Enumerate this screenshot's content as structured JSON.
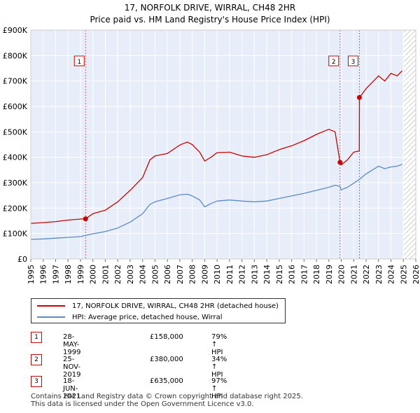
{
  "header": {
    "title": "17, NORFOLK DRIVE, WIRRAL, CH48 2HR",
    "subtitle": "Price paid vs. HM Land Registry's House Price Index (HPI)"
  },
  "colors": {
    "property_line": "#cc0000",
    "hpi_line": "#5b8ac8",
    "background": "#e8eef9",
    "hatch": "#b8b8b8",
    "sale_vline": "#e06060"
  },
  "chart_data": {
    "type": "line",
    "title": "17, NORFOLK DRIVE, WIRRAL, CH48 2HR",
    "subtitle": "Price paid vs. HM Land Registry's House Price Index (HPI)",
    "xlim": [
      1995,
      2026
    ],
    "ylim": [
      0,
      900000
    ],
    "x_ticks": [
      1995,
      1996,
      1997,
      1998,
      1999,
      2000,
      2001,
      2002,
      2003,
      2004,
      2005,
      2006,
      2007,
      2008,
      2009,
      2010,
      2011,
      2012,
      2013,
      2014,
      2015,
      2016,
      2017,
      2018,
      2019,
      2020,
      2021,
      2022,
      2023,
      2024,
      2025,
      2026
    ],
    "y_ticks": [
      {
        "value": 0,
        "label": "£0"
      },
      {
        "value": 100000,
        "label": "£100K"
      },
      {
        "value": 200000,
        "label": "£200K"
      },
      {
        "value": 300000,
        "label": "£300K"
      },
      {
        "value": 400000,
        "label": "£400K"
      },
      {
        "value": 500000,
        "label": "£500K"
      },
      {
        "value": 600000,
        "label": "£600K"
      },
      {
        "value": 700000,
        "label": "£700K"
      },
      {
        "value": 800000,
        "label": "£800K"
      },
      {
        "value": 900000,
        "label": "£900K"
      }
    ],
    "shaded_range": [
      1995,
      1999.41
    ],
    "hatched_range": [
      2025.0,
      2026
    ],
    "series": [
      {
        "name": "17, NORFOLK DRIVE, WIRRAL, CH48 2HR (detached house)",
        "color": "#cc0000",
        "x": [
          1995,
          1996,
          1997,
          1998,
          1999.0,
          1999.41,
          2000,
          2001,
          2002,
          2003,
          2004,
          2004.6,
          2005,
          2006,
          2007,
          2007.6,
          2008,
          2008.6,
          2009,
          2009.5,
          2010,
          2011,
          2012,
          2013,
          2014,
          2015,
          2016,
          2017,
          2018,
          2019,
          2019.5,
          2019.9,
          2020,
          2020.5,
          2021,
          2021.45,
          2021.46,
          2022,
          2023,
          2023.5,
          2024,
          2024.5,
          2024.9
        ],
        "values": [
          140000,
          143000,
          147000,
          153000,
          157000,
          158000,
          178000,
          192000,
          225000,
          270000,
          320000,
          390000,
          405000,
          415000,
          448000,
          460000,
          450000,
          420000,
          385000,
          400000,
          418000,
          420000,
          405000,
          400000,
          410000,
          430000,
          445000,
          465000,
          490000,
          510000,
          500000,
          380000,
          370000,
          390000,
          420000,
          425000,
          635000,
          670000,
          720000,
          700000,
          730000,
          720000,
          740000
        ]
      },
      {
        "name": "HPI: Average price, detached house, Wirral",
        "color": "#5b8ac8",
        "x": [
          1995,
          1996,
          1997,
          1998,
          1999,
          2000,
          2001,
          2002,
          2003,
          2004,
          2004.6,
          2005,
          2006,
          2007,
          2007.6,
          2008,
          2008.6,
          2009,
          2009.5,
          2010,
          2011,
          2012,
          2013,
          2014,
          2015,
          2016,
          2017,
          2018,
          2019,
          2019.5,
          2019.9,
          2020,
          2020.5,
          2021,
          2021.5,
          2022,
          2023,
          2023.5,
          2024,
          2024.5,
          2024.9
        ],
        "values": [
          77000,
          79000,
          82000,
          85000,
          88000,
          99000,
          108000,
          122000,
          145000,
          178000,
          215000,
          225000,
          238000,
          252000,
          255000,
          248000,
          232000,
          205000,
          218000,
          228000,
          232000,
          228000,
          225000,
          228000,
          238000,
          248000,
          258000,
          270000,
          282000,
          290000,
          285000,
          272000,
          282000,
          298000,
          315000,
          335000,
          365000,
          355000,
          362000,
          365000,
          372000
        ]
      }
    ],
    "sales": [
      {
        "n": "1",
        "x": 1999.41,
        "y": 158000,
        "date": "28-MAY-1999",
        "price": "£158,000",
        "hpi": "79% ↑ HPI"
      },
      {
        "n": "2",
        "x": 2019.9,
        "y": 380000,
        "date": "25-NOV-2019",
        "price": "£380,000",
        "hpi": "34% ↑ HPI"
      },
      {
        "n": "3",
        "x": 2021.46,
        "y": 635000,
        "date": "18-JUN-2021",
        "price": "£635,000",
        "hpi": "97% ↑ HPI"
      }
    ]
  },
  "legend": {
    "property_label": "17, NORFOLK DRIVE, WIRRAL, CH48 2HR (detached house)",
    "hpi_label": "HPI: Average price, detached house, Wirral"
  },
  "footer": {
    "line1": "Contains HM Land Registry data © Crown copyright and database right 2025.",
    "line2": "This data is licensed under the Open Government Licence v3.0."
  }
}
